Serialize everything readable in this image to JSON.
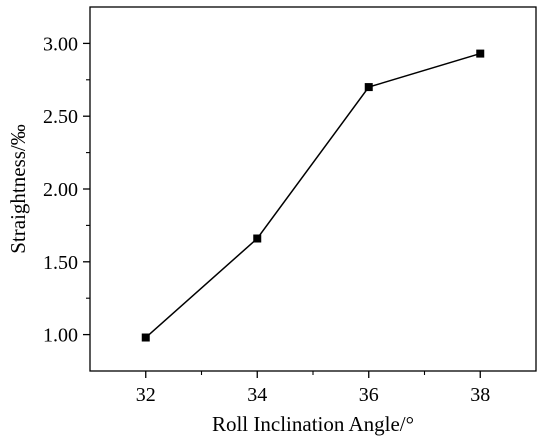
{
  "chart_data": {
    "type": "line",
    "title": "",
    "xlabel": "Roll Inclination Angle/°",
    "ylabel": "Straightness/‰",
    "x": [
      32,
      34,
      36,
      38
    ],
    "series": [
      {
        "values": [
          0.98,
          1.66,
          2.7,
          2.93
        ]
      }
    ],
    "xlim": [
      31,
      39
    ],
    "ylim": [
      0.75,
      3.25
    ],
    "x_ticks": [
      "32",
      "34",
      "36",
      "38"
    ],
    "y_ticks": [
      "1.00",
      "1.50",
      "2.00",
      "2.50",
      "3.00"
    ],
    "marker": "square",
    "line_color": "#000000",
    "grid": false,
    "legend": "none"
  }
}
